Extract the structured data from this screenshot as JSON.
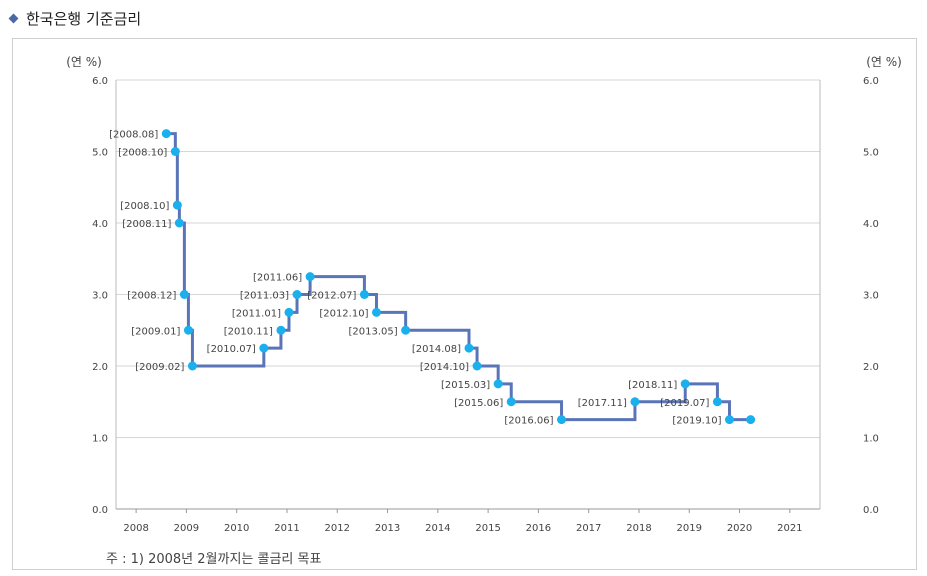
{
  "title": "한국은행 기준금리",
  "note": "주 : 1) 2008년 2월까지는 콜금리 목표",
  "colors": {
    "line": "#5a74b8",
    "marker": "#1ab0ee",
    "grid": "#d6d6d6",
    "bullet": "#4a67a8"
  },
  "chart_data": {
    "type": "line",
    "step": true,
    "title": "",
    "ylabel_left": "(연 %)",
    "ylabel_right": "(연 %)",
    "ylim": [
      0,
      6
    ],
    "xlim": [
      2007.6,
      2021.6
    ],
    "yticks": [
      "0.0",
      "1.0",
      "2.0",
      "3.0",
      "4.0",
      "5.0",
      "6.0"
    ],
    "xticks": [
      "2008",
      "2009",
      "2010",
      "2011",
      "2012",
      "2013",
      "2014",
      "2015",
      "2016",
      "2017",
      "2018",
      "2019",
      "2020",
      "2021"
    ],
    "grid": true,
    "points": [
      {
        "label": "[2008.08]",
        "x": 2008.6,
        "y": 5.25
      },
      {
        "label": "[2008.10]",
        "x": 2008.78,
        "y": 5.0
      },
      {
        "label": "[2008.10]",
        "x": 2008.82,
        "y": 4.25
      },
      {
        "label": "[2008.11]",
        "x": 2008.86,
        "y": 4.0
      },
      {
        "label": "[2008.12]",
        "x": 2008.96,
        "y": 3.0
      },
      {
        "label": "[2009.01]",
        "x": 2009.04,
        "y": 2.5
      },
      {
        "label": "[2009.02]",
        "x": 2009.12,
        "y": 2.0
      },
      {
        "label": "[2010.07]",
        "x": 2010.54,
        "y": 2.25
      },
      {
        "label": "[2010.11]",
        "x": 2010.88,
        "y": 2.5
      },
      {
        "label": "[2011.01]",
        "x": 2011.04,
        "y": 2.75
      },
      {
        "label": "[2011.03]",
        "x": 2011.2,
        "y": 3.0
      },
      {
        "label": "[2011.06]",
        "x": 2011.46,
        "y": 3.25
      },
      {
        "label": "[2012.07]",
        "x": 2012.54,
        "y": 3.0
      },
      {
        "label": "[2012.10]",
        "x": 2012.78,
        "y": 2.75
      },
      {
        "label": "[2013.05]",
        "x": 2013.36,
        "y": 2.5
      },
      {
        "label": "[2014.08]",
        "x": 2014.62,
        "y": 2.25
      },
      {
        "label": "[2014.10]",
        "x": 2014.78,
        "y": 2.0
      },
      {
        "label": "[2015.03]",
        "x": 2015.2,
        "y": 1.75
      },
      {
        "label": "[2015.06]",
        "x": 2015.46,
        "y": 1.5
      },
      {
        "label": "[2016.06]",
        "x": 2016.46,
        "y": 1.25
      },
      {
        "label": "[2017.11]",
        "x": 2017.92,
        "y": 1.5
      },
      {
        "label": "[2018.11]",
        "x": 2018.92,
        "y": 1.75
      },
      {
        "label": "[2019.07]",
        "x": 2019.56,
        "y": 1.5
      },
      {
        "label": "[2019.10]",
        "x": 2019.8,
        "y": 1.25
      },
      {
        "label": "",
        "x": 2020.22,
        "y": 1.25
      }
    ]
  }
}
